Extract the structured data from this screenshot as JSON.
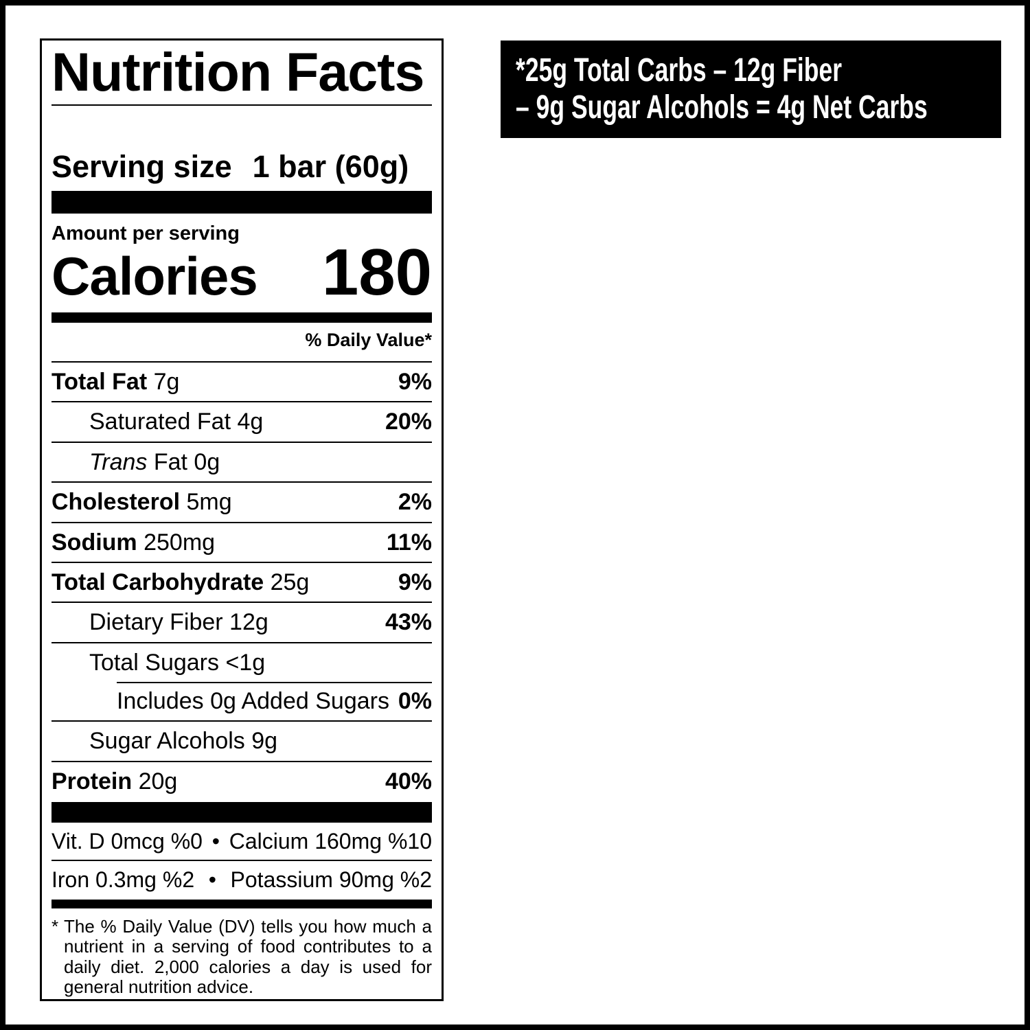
{
  "colors": {
    "ink": "#000000",
    "paper": "#ffffff",
    "banner_bg": "#000000",
    "banner_text": "#ffffff"
  },
  "banner": {
    "line1": "*25g Total Carbs – 12g Fiber",
    "line2": "– 9g Sugar Alcohols = 4g Net Carbs"
  },
  "label": {
    "title": "Nutrition Facts",
    "serving": {
      "label": "Serving size",
      "value": "1 bar (60g)"
    },
    "amount_per_serving": "Amount per serving",
    "calories": {
      "label": "Calories",
      "value": "180"
    },
    "daily_value_header": "% Daily Value*",
    "nutrients": [
      {
        "bold": "Total Fat ",
        "regular": "7g",
        "dv": "9%"
      },
      {
        "regular": "Saturated Fat 4g",
        "dv": "20%"
      },
      {
        "italic": "Trans",
        "regular": " Fat 0g",
        "dv": ""
      },
      {
        "bold": "Cholesterol ",
        "regular": "5mg",
        "dv": "2%"
      },
      {
        "bold": "Sodium ",
        "regular": "250mg",
        "dv": "11%"
      },
      {
        "bold": "Total Carbohydrate ",
        "regular": "25g",
        "dv": "9%"
      },
      {
        "regular": "Dietary Fiber 12g",
        "dv": "43%"
      },
      {
        "regular": "Total Sugars <1g",
        "dv": ""
      },
      {
        "regular": "Includes 0g Added Sugars",
        "dv": "0%"
      },
      {
        "regular": "Sugar Alcohols 9g",
        "dv": ""
      },
      {
        "bold": "Protein ",
        "regular": "20g",
        "dv": "40%"
      }
    ],
    "micronutrients": [
      {
        "left": "Vit. D 0mcg %0",
        "separator": "•",
        "right": "Calcium 160mg %10"
      },
      {
        "left": "Iron 0.3mg %2",
        "separator": "•",
        "right": "Potassium 90mg %2"
      }
    ],
    "footnote": {
      "marker": "*",
      "text": "The % Daily Value (DV) tells you how much a nutrient in a serving of food contributes to a daily diet. 2,000 calories a day is used for general nutrition advice."
    }
  }
}
